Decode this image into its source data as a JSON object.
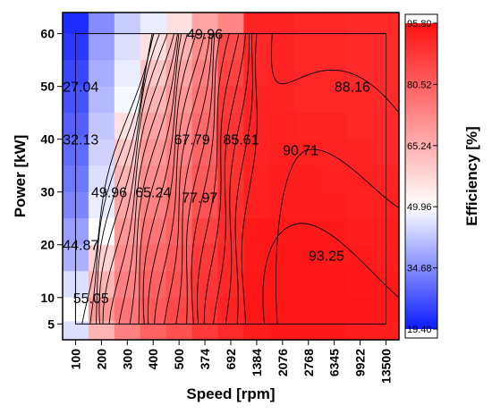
{
  "chart_data": {
    "type": "heatmap",
    "title": "",
    "xlabel": "Speed [rpm]",
    "ylabel": "Power [kW]",
    "x_categories": [
      "100",
      "200",
      "300",
      "400",
      "500",
      "374",
      "692",
      "1384",
      "2076",
      "2768",
      "6345",
      "9922",
      "13500"
    ],
    "y_ticks": [
      5,
      10,
      20,
      30,
      40,
      50,
      60
    ],
    "ylim": [
      2,
      64
    ],
    "colorbar": {
      "label": "Efficiency [%]",
      "min": 19.4,
      "max": 95.8,
      "ticks": [
        "19.40",
        "34.68",
        "49.96",
        "65.24",
        "80.52",
        "95.80"
      ],
      "colors": {
        "low": "#0b1cff",
        "mid": "#ffffff",
        "high": "#ff1010"
      }
    },
    "heatmap_rows": [
      {
        "power": 62.5,
        "values": [
          22,
          37,
          47,
          52,
          56,
          62,
          67,
          90,
          90,
          89,
          89,
          88,
          88
        ]
      },
      {
        "power": 57.5,
        "values": [
          24,
          40,
          50,
          56,
          60,
          66,
          80,
          89,
          90,
          89,
          89,
          88,
          88
        ]
      },
      {
        "power": 52.5,
        "values": [
          26,
          42,
          52,
          58,
          62,
          68,
          82,
          89,
          90,
          89,
          89,
          88,
          88
        ]
      },
      {
        "power": 47.5,
        "values": [
          28,
          44,
          54,
          60,
          64,
          70,
          84,
          90,
          90,
          89,
          89,
          89,
          88
        ]
      },
      {
        "power": 42.5,
        "values": [
          30,
          46,
          56,
          62,
          66,
          72,
          85,
          90,
          91,
          90,
          90,
          89,
          89
        ]
      },
      {
        "power": 37.5,
        "values": [
          32,
          48,
          58,
          64,
          68,
          74,
          86,
          90,
          91,
          91,
          90,
          90,
          89
        ]
      },
      {
        "power": 32.5,
        "values": [
          34,
          50,
          60,
          66,
          70,
          76,
          86,
          91,
          92,
          92,
          91,
          91,
          90
        ]
      },
      {
        "power": 27.5,
        "values": [
          36,
          52,
          62,
          68,
          72,
          78,
          87,
          91,
          92,
          92,
          92,
          91,
          91
        ]
      },
      {
        "power": 22.5,
        "values": [
          40,
          55,
          64,
          70,
          74,
          82,
          88,
          93,
          93,
          93,
          93,
          92,
          92
        ]
      },
      {
        "power": 17.5,
        "values": [
          43,
          57,
          66,
          72,
          76,
          84,
          89,
          93,
          94,
          94,
          93,
          93,
          92
        ]
      },
      {
        "power": 12.5,
        "values": [
          50,
          60,
          68,
          74,
          78,
          85,
          89,
          94,
          94,
          94,
          94,
          93,
          93
        ]
      },
      {
        "power": 7.5,
        "values": [
          55,
          64,
          70,
          76,
          80,
          86,
          90,
          94,
          94,
          94,
          94,
          94,
          93
        ]
      },
      {
        "power": 3.5,
        "values": [
          50,
          60,
          68,
          74,
          78,
          84,
          88,
          92,
          93,
          93,
          93,
          92,
          92
        ]
      }
    ],
    "contour_labels": [
      {
        "text": "49.96",
        "x": 5.5,
        "y": 60
      },
      {
        "text": "27.04",
        "x": 0.7,
        "y": 50
      },
      {
        "text": "88.16",
        "x": 11.2,
        "y": 50
      },
      {
        "text": "32.13",
        "x": 0.7,
        "y": 40
      },
      {
        "text": "67.79",
        "x": 5.0,
        "y": 40
      },
      {
        "text": "85.61",
        "x": 6.9,
        "y": 40
      },
      {
        "text": "90.71",
        "x": 9.2,
        "y": 38
      },
      {
        "text": "49.96",
        "x": 1.8,
        "y": 30
      },
      {
        "text": "65.24",
        "x": 3.5,
        "y": 30
      },
      {
        "text": "77.97",
        "x": 5.3,
        "y": 29
      },
      {
        "text": "44.87",
        "x": 0.7,
        "y": 20
      },
      {
        "text": "93.25",
        "x": 10.2,
        "y": 18
      },
      {
        "text": "55.05",
        "x": 1.1,
        "y": 10
      }
    ],
    "grid": false,
    "legend": "colorbar-right"
  }
}
